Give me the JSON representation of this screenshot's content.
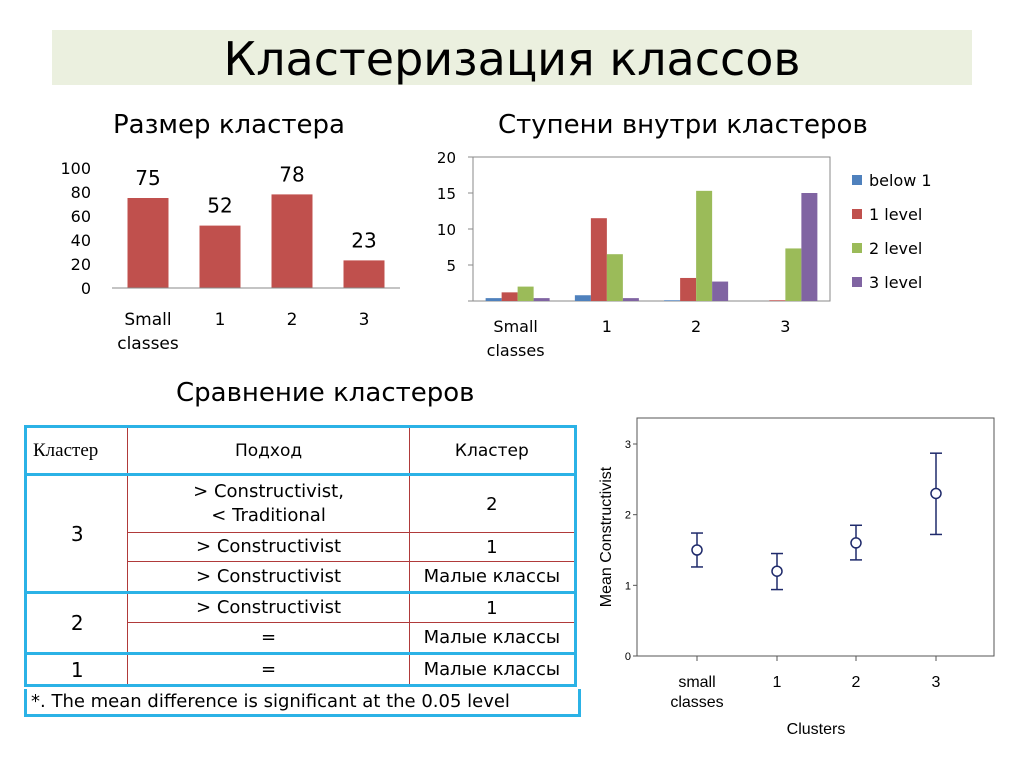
{
  "title": "Кластеризация классов",
  "subtitles": {
    "cluster_size": "Размер кластера",
    "levels": "Ступени внутри кластеров",
    "comparison": "Сравнение кластеров"
  },
  "colors": {
    "bar_red": "#c0504d",
    "blue": "#4f81bd",
    "red": "#c0504d",
    "green": "#9bbb59",
    "purple": "#8064a2",
    "table_blue": "#2bb2e6",
    "table_red": "#b03a3a",
    "errorbar": "#1f2a6b"
  },
  "chart_data": [
    {
      "type": "bar",
      "title": "Размер кластера",
      "categories": [
        "Small classes",
        "1",
        "2",
        "3"
      ],
      "values": [
        75,
        52,
        78,
        23
      ],
      "ylim": [
        0,
        100
      ],
      "yticks": [
        0,
        20,
        40,
        60,
        80,
        100
      ]
    },
    {
      "type": "bar",
      "title": "Ступени внутри кластеров",
      "categories": [
        "Small classes",
        "1",
        "2",
        "3"
      ],
      "ylim": [
        0,
        20
      ],
      "yticks": [
        5,
        10,
        15,
        20
      ],
      "legend_position": "right",
      "series": [
        {
          "name": "below 1",
          "values": [
            0.4,
            0.8,
            0.1,
            0
          ]
        },
        {
          "name": "1 level",
          "values": [
            1.2,
            11.5,
            3.2,
            0.1
          ]
        },
        {
          "name": "2 level",
          "values": [
            2.0,
            6.5,
            15.3,
            7.3
          ]
        },
        {
          "name": "3 level",
          "values": [
            0.4,
            0.4,
            2.7,
            15.0
          ]
        }
      ]
    },
    {
      "type": "scatter",
      "xlabel": "Clusters",
      "ylabel": "Mean Constructivist",
      "categories": [
        "small classes",
        "1",
        "2",
        "3"
      ],
      "ylim": [
        0,
        3
      ],
      "yticks": [
        0,
        1,
        2,
        3
      ],
      "means": [
        1.5,
        1.2,
        1.6,
        2.3
      ],
      "lower": [
        1.26,
        0.94,
        1.36,
        1.72
      ],
      "upper": [
        1.74,
        1.45,
        1.85,
        2.87
      ]
    }
  ],
  "comparison_table": {
    "header": {
      "cluster1": "Кластер",
      "approach": "Подход",
      "cluster2": "Кластер"
    },
    "groups": [
      {
        "cluster": "3",
        "rows": [
          {
            "approach": "> Constructivist,\n< Traditional",
            "cluster": "2"
          },
          {
            "approach": "> Constructivist",
            "cluster": "1"
          },
          {
            "approach": "> Constructivist",
            "cluster": "Малые классы"
          }
        ]
      },
      {
        "cluster": "2",
        "rows": [
          {
            "approach": ">  Constructivist",
            "cluster": "1"
          },
          {
            "approach": "=",
            "cluster": "Малые классы"
          }
        ]
      },
      {
        "cluster": "1",
        "rows": [
          {
            "approach": "=",
            "cluster": "Малые классы"
          }
        ]
      }
    ],
    "note": "*. The mean difference is significant at the 0.05 level"
  }
}
